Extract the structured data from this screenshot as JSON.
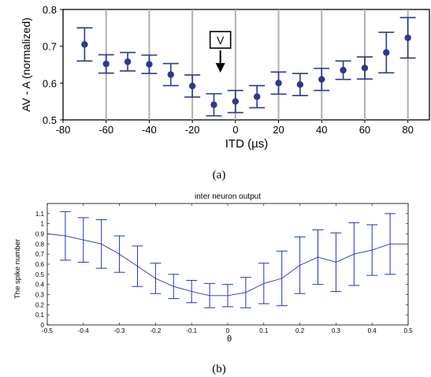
{
  "chart_data": [
    {
      "type": "scatter",
      "panel_caption": "(a)",
      "xlabel": "ITD (µs)",
      "ylabel": "AV - A (normalized)",
      "xlim": [
        -80,
        90
      ],
      "ylim": [
        0.5,
        0.8
      ],
      "x_ticks": [
        "-80",
        "-60",
        "-40",
        "-20",
        "0",
        "20",
        "40",
        "60",
        "80"
      ],
      "y_ticks": [
        "0.5",
        "0.6",
        "0.7",
        "0.8"
      ],
      "grid": "vertical",
      "annotation": "V",
      "marker_color": "#2b3a8c",
      "series": [
        {
          "x": [
            -70,
            -60,
            -50,
            -40,
            -30,
            -20,
            -10,
            0,
            10,
            20,
            30,
            40,
            50,
            60,
            70,
            80
          ],
          "y": [
            0.705,
            0.652,
            0.658,
            0.651,
            0.623,
            0.592,
            0.541,
            0.55,
            0.563,
            0.6,
            0.596,
            0.61,
            0.635,
            0.641,
            0.683,
            0.723
          ],
          "err": [
            0.045,
            0.025,
            0.025,
            0.025,
            0.03,
            0.03,
            0.03,
            0.03,
            0.03,
            0.03,
            0.03,
            0.03,
            0.025,
            0.03,
            0.055,
            0.055
          ]
        }
      ]
    },
    {
      "type": "line",
      "panel_caption": "(b)",
      "title": "inter neuron output",
      "xlabel": "θ",
      "ylabel": "The spike number",
      "xlim": [
        -0.5,
        0.5
      ],
      "ylim": [
        0,
        1.2
      ],
      "x_ticks": [
        "-0.5",
        "-0.4",
        "-0.3",
        "-0.2",
        "-0.1",
        "0",
        "0.1",
        "0.2",
        "0.3",
        "0.4",
        "0.5"
      ],
      "y_ticks": [
        "0",
        "0.1",
        "0.2",
        "0.3",
        "0.4",
        "0.5",
        "0.6",
        "0.7",
        "0.8",
        "0.9",
        "1",
        "1.1"
      ],
      "line_color": "#1f2fd6",
      "series": [
        {
          "x": [
            -0.5,
            -0.45,
            -0.4,
            -0.35,
            -0.3,
            -0.25,
            -0.2,
            -0.15,
            -0.1,
            -0.05,
            0,
            0.05,
            0.1,
            0.15,
            0.2,
            0.25,
            0.3,
            0.35,
            0.4,
            0.45,
            0.5
          ],
          "y": [
            0.9,
            0.88,
            0.84,
            0.8,
            0.7,
            0.58,
            0.46,
            0.38,
            0.33,
            0.29,
            0.29,
            0.32,
            0.41,
            0.46,
            0.59,
            0.67,
            0.62,
            0.7,
            0.74,
            0.8,
            0.8
          ],
          "err": [
            null,
            0.24,
            0.22,
            0.24,
            0.18,
            0.2,
            0.15,
            0.12,
            0.11,
            0.12,
            0.11,
            0.15,
            0.2,
            0.27,
            0.28,
            0.27,
            0.29,
            0.31,
            0.25,
            0.3,
            null
          ]
        }
      ]
    }
  ]
}
